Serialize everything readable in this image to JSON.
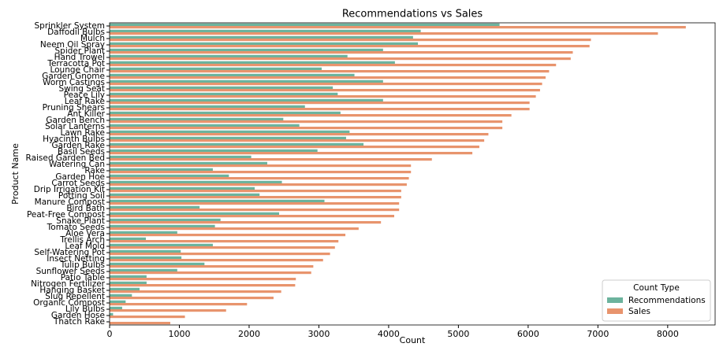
{
  "chart_data": {
    "type": "barh",
    "title": "Recommendations vs Sales",
    "xlabel": "Count",
    "ylabel": "Product Name",
    "categories": [
      "Sprinkler System",
      "Daffodil Bulbs",
      "Mulch",
      "Neem Oil Spray",
      "Spider Plant",
      "Hand Trowel",
      "Terracotta Pot",
      "Lounge Chair",
      "Garden Gnome",
      "Worm Castings",
      "Swing Seat",
      "Peace Lily",
      "Leaf Rake",
      "Pruning Shears",
      "Ant Killer",
      "Garden Bench",
      "Solar Lanterns",
      "Lawn Rake",
      "Hyacinth Bulbs",
      "Garden Rake",
      "Basil Seeds",
      "Raised Garden Bed",
      "Watering Can",
      "Rake",
      "Garden Hoe",
      "Carrot Seeds",
      "Drip Irrigation Kit",
      "Potting Soil",
      "Manure Compost",
      "Bird Bath",
      "Peat-Free Compost",
      "Snake Plant",
      "Tomato Seeds",
      "Aloe Vera",
      "Trellis Arch",
      "Leaf Mold",
      "Self-Watering Pot",
      "Insect Netting",
      "Tulip Bulbs",
      "Sunflower Seeds",
      "Patio Table",
      "Nitrogen Fertilizer",
      "Hanging Basket",
      "Slug Repellent",
      "Organic Compost",
      "Lily Bulbs",
      "Garden Hose",
      "Thatch Rake"
    ],
    "series": [
      {
        "name": "Recommendations",
        "color": "#6cb39d",
        "values": [
          5590,
          4460,
          4350,
          4420,
          3920,
          3410,
          4090,
          3040,
          3510,
          3920,
          3200,
          3270,
          3920,
          2800,
          3310,
          2490,
          2720,
          3440,
          3390,
          3640,
          2980,
          2030,
          2260,
          1480,
          1710,
          2470,
          2080,
          2150,
          3080,
          1290,
          2430,
          1590,
          1510,
          970,
          520,
          1480,
          1020,
          1030,
          1360,
          970,
          530,
          530,
          430,
          320,
          230,
          180,
          50,
          0
        ]
      },
      {
        "name": "Sales",
        "color": "#e8946d",
        "values": [
          8260,
          7860,
          6900,
          6880,
          6640,
          6610,
          6400,
          6300,
          6250,
          6200,
          6170,
          6110,
          6020,
          6020,
          5760,
          5630,
          5630,
          5430,
          5370,
          5300,
          5200,
          4620,
          4320,
          4320,
          4290,
          4260,
          4180,
          4180,
          4150,
          4150,
          4080,
          3890,
          3570,
          3380,
          3280,
          3230,
          3160,
          3060,
          2920,
          2890,
          2670,
          2660,
          2460,
          2350,
          1970,
          1670,
          1080,
          870
        ]
      }
    ],
    "xlim": [
      0,
      8680
    ],
    "xticks": [
      0,
      1000,
      2000,
      3000,
      4000,
      5000,
      6000,
      7000,
      8000
    ],
    "legend": "lower right",
    "legend_title": "Count Type"
  }
}
